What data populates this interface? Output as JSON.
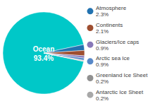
{
  "chart_data": {
    "type": "pie",
    "categories": [
      "Ocean",
      "Atmosphere",
      "Continents",
      "Glaciers/Ice caps",
      "Arctic sea Ice",
      "Greenland Ice Sheet",
      "Antarctic Ice Sheet"
    ],
    "values": [
      93.4,
      2.3,
      2.1,
      0.9,
      0.9,
      0.2,
      0.2
    ],
    "value_labels": [
      "93.4%",
      "2.3%",
      "2.1%",
      "0.9%",
      "0.9%",
      "0.2%",
      "0.2%"
    ],
    "colors": [
      "#00c8c8",
      "#2272b0",
      "#9e4e30",
      "#8878b8",
      "#5888c8",
      "#909090",
      "#a8a8a8"
    ],
    "legend": "right"
  }
}
